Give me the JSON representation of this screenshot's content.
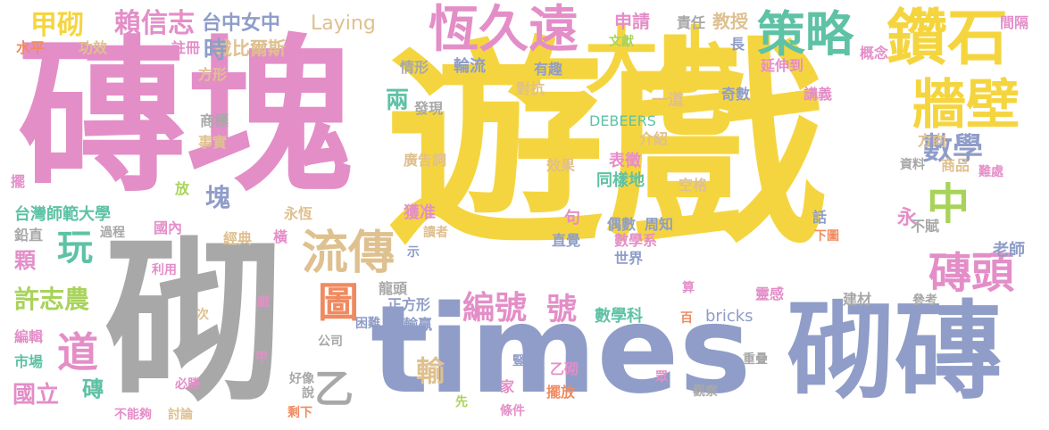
{
  "palette": {
    "yellow": "#f5d53f",
    "pink": "#e48ec8",
    "gray": "#a8a8a8",
    "blue": "#8f9dc8",
    "green": "#5ec2a5",
    "lime": "#a8d35a",
    "tan": "#dfc08f",
    "orange": "#f08a60"
  },
  "words": [
    {
      "id": "youxi",
      "text": "遊戲",
      "color": "yellow"
    },
    {
      "id": "zhuankuai",
      "text": "磚塊",
      "color": "pink"
    },
    {
      "id": "qi",
      "text": "砌",
      "color": "gray"
    },
    {
      "id": "times",
      "text": "times",
      "color": "blue"
    },
    {
      "id": "qizhuan",
      "text": "砌磚",
      "color": "blue"
    },
    {
      "id": "zuanshi",
      "text": "鑽石",
      "color": "yellow"
    },
    {
      "id": "daxiao",
      "text": "大小",
      "color": "yellow"
    },
    {
      "id": "hengjiuyuan",
      "text": "恆久遠",
      "color": "pink"
    },
    {
      "id": "celue",
      "text": "策略",
      "color": "green"
    },
    {
      "id": "qiangbi",
      "text": "牆壁",
      "color": "yellow"
    },
    {
      "id": "zhong",
      "text": "中",
      "color": "lime"
    },
    {
      "id": "shuxue",
      "text": "數學",
      "color": "blue"
    },
    {
      "id": "zhuantou",
      "text": "磚頭",
      "color": "pink"
    },
    {
      "id": "liuchuan",
      "text": "流傳",
      "color": "tan"
    },
    {
      "id": "tu",
      "text": "圖",
      "color": "orange"
    },
    {
      "id": "bianhao",
      "text": "編號",
      "color": "pink"
    },
    {
      "id": "hao",
      "text": "號",
      "color": "pink"
    },
    {
      "id": "wan",
      "text": "玩",
      "color": "green"
    },
    {
      "id": "dao",
      "text": "道",
      "color": "pink"
    },
    {
      "id": "yi",
      "text": "乙",
      "color": "gray"
    },
    {
      "id": "shu",
      "text": "輸",
      "color": "tan"
    },
    {
      "id": "jiaqi",
      "text": "甲砌",
      "color": "yellow"
    },
    {
      "id": "laixinzhi",
      "text": "賴信志",
      "color": "pink"
    },
    {
      "id": "taizhongnvzhong",
      "text": "台中女中",
      "color": "blue"
    },
    {
      "id": "laying",
      "text": "Laying",
      "color": "tan"
    },
    {
      "id": "shenqing",
      "text": "申請",
      "color": "pink"
    },
    {
      "id": "zeren",
      "text": "責任",
      "color": "gray"
    },
    {
      "id": "jiaoshou",
      "text": "教授",
      "color": "tan"
    },
    {
      "id": "shuiping",
      "text": "水平",
      "color": "orange"
    },
    {
      "id": "gongxiao",
      "text": "功效",
      "color": "tan"
    },
    {
      "id": "zhuce",
      "text": "註冊",
      "color": "pink"
    },
    {
      "id": "daibiersi",
      "text": "戴比爾斯",
      "color": "tan"
    },
    {
      "id": "wenxian",
      "text": "文獻",
      "color": "lime"
    },
    {
      "id": "zhang",
      "text": "長",
      "color": "blue"
    },
    {
      "id": "fangxing",
      "text": "方形",
      "color": "tan"
    },
    {
      "id": "qingxing",
      "text": "情形",
      "color": "gray"
    },
    {
      "id": "lunliu",
      "text": "輪流",
      "color": "blue"
    },
    {
      "id": "youqu",
      "text": "有趣",
      "color": "blue"
    },
    {
      "id": "yanshendao",
      "text": "延伸到",
      "color": "pink"
    },
    {
      "id": "gainian",
      "text": "概念",
      "color": "pink"
    },
    {
      "id": "jiange",
      "text": "間隔",
      "color": "pink"
    },
    {
      "id": "shi",
      "text": "時",
      "color": "blue"
    },
    {
      "id": "duikang",
      "text": "對抗",
      "color": "tan"
    },
    {
      "id": "qishu",
      "text": "奇數",
      "color": "blue"
    },
    {
      "id": "yidao",
      "text": "一道",
      "color": "tan"
    },
    {
      "id": "jiangyi",
      "text": "講義",
      "color": "pink"
    },
    {
      "id": "liang",
      "text": "兩",
      "color": "green"
    },
    {
      "id": "faxian",
      "text": "發現",
      "color": "gray"
    },
    {
      "id": "debeers",
      "text": "DEBEERS",
      "color": "green"
    },
    {
      "id": "shangbiao",
      "text": "商標",
      "color": "gray"
    },
    {
      "id": "shishi",
      "text": "事實",
      "color": "tan"
    },
    {
      "id": "jieshao",
      "text": "介紹",
      "color": "tan"
    },
    {
      "id": "fangxiang",
      "text": "方向",
      "color": "tan"
    },
    {
      "id": "ziliao",
      "text": "資料",
      "color": "gray"
    },
    {
      "id": "shangpin",
      "text": "商品",
      "color": "tan"
    },
    {
      "id": "nanchu",
      "text": "難處",
      "color": "pink"
    },
    {
      "id": "guanggaoci",
      "text": "廣告詞",
      "color": "tan"
    },
    {
      "id": "biaozheng",
      "text": "表徵",
      "color": "pink"
    },
    {
      "id": "xiaoguo",
      "text": "效果",
      "color": "tan"
    },
    {
      "id": "tongyangdi",
      "text": "同樣地",
      "color": "green"
    },
    {
      "id": "kongge",
      "text": "空格",
      "color": "tan"
    },
    {
      "id": "bai",
      "text": "擺",
      "color": "pink"
    },
    {
      "id": "fang",
      "text": "放",
      "color": "lime"
    },
    {
      "id": "kuai",
      "text": "塊",
      "color": "blue"
    },
    {
      "id": "yong",
      "text": "永",
      "color": "pink"
    },
    {
      "id": "taiwanshida",
      "text": "台灣師範大學",
      "color": "green"
    },
    {
      "id": "guonei",
      "text": "國內",
      "color": "pink"
    },
    {
      "id": "yongheng",
      "text": "永恆",
      "color": "tan"
    },
    {
      "id": "huozhun",
      "text": "獲准",
      "color": "pink"
    },
    {
      "id": "ju",
      "text": "句",
      "color": "pink"
    },
    {
      "id": "hua",
      "text": "話",
      "color": "blue"
    },
    {
      "id": "xiatu",
      "text": "下圖",
      "color": "orange"
    },
    {
      "id": "bufu",
      "text": "不賦",
      "color": "gray"
    },
    {
      "id": "qianzhi",
      "text": "鉛直",
      "color": "gray"
    },
    {
      "id": "guocheng",
      "text": "過程",
      "color": "gray"
    },
    {
      "id": "jingdian",
      "text": "經典",
      "color": "tan"
    },
    {
      "id": "heng",
      "text": "橫",
      "color": "pink"
    },
    {
      "id": "duzhe",
      "text": "讀者",
      "color": "tan"
    },
    {
      "id": "oushu",
      "text": "偶數",
      "color": "blue"
    },
    {
      "id": "zhouzhi",
      "text": "周知",
      "color": "blue"
    },
    {
      "id": "laoshi",
      "text": "老師",
      "color": "blue"
    },
    {
      "id": "ke",
      "text": "顆",
      "color": "pink"
    },
    {
      "id": "shi2",
      "text": "示",
      "color": "blue"
    },
    {
      "id": "zhijue",
      "text": "直覺",
      "color": "blue"
    },
    {
      "id": "shuxuexi",
      "text": "數學系",
      "color": "pink"
    },
    {
      "id": "shijie",
      "text": "世界",
      "color": "blue"
    },
    {
      "id": "liyong",
      "text": "利用",
      "color": "pink"
    },
    {
      "id": "xuzhinong",
      "text": "許志農",
      "color": "lime"
    },
    {
      "id": "longtou",
      "text": "龍頭",
      "color": "gray"
    },
    {
      "id": "suan",
      "text": "算",
      "color": "pink"
    },
    {
      "id": "lingan",
      "text": "靈感",
      "color": "pink"
    },
    {
      "id": "jiancai",
      "text": "建材",
      "color": "gray"
    },
    {
      "id": "ci",
      "text": "次",
      "color": "tan"
    },
    {
      "id": "xi",
      "text": "戲",
      "color": "pink"
    },
    {
      "id": "zhengfangxing",
      "text": "正方形",
      "color": "blue"
    },
    {
      "id": "shuxueke",
      "text": "數學科",
      "color": "green"
    },
    {
      "id": "bricks",
      "text": "bricks",
      "color": "blue"
    },
    {
      "id": "cankao",
      "text": "參考",
      "color": "gray"
    },
    {
      "id": "kunnan",
      "text": "困難",
      "color": "blue"
    },
    {
      "id": "shuying",
      "text": "輸贏",
      "color": "blue"
    },
    {
      "id": "bai2",
      "text": "百",
      "color": "orange"
    },
    {
      "id": "bianji",
      "text": "編輯",
      "color": "pink"
    },
    {
      "id": "gongsi",
      "text": "公司",
      "color": "gray"
    },
    {
      "id": "shuchang",
      "text": "市場",
      "color": "green"
    },
    {
      "id": "jia",
      "text": "甲",
      "color": "pink"
    },
    {
      "id": "shu2",
      "text": "豎",
      "color": "blue"
    },
    {
      "id": "yiqi",
      "text": "乙砌",
      "color": "pink"
    },
    {
      "id": "chongdie",
      "text": "重疊",
      "color": "gray"
    },
    {
      "id": "guoli",
      "text": "國立",
      "color": "pink"
    },
    {
      "id": "zhuan",
      "text": "磚",
      "color": "green"
    },
    {
      "id": "bisheng",
      "text": "必勝",
      "color": "pink"
    },
    {
      "id": "haoxiang",
      "text": "好像",
      "color": "gray"
    },
    {
      "id": "shuo",
      "text": "說",
      "color": "gray"
    },
    {
      "id": "jia2",
      "text": "家",
      "color": "pink"
    },
    {
      "id": "zhong2",
      "text": "眾",
      "color": "pink"
    },
    {
      "id": "baifang",
      "text": "擺放",
      "color": "orange"
    },
    {
      "id": "guancha",
      "text": "觀察",
      "color": "gray"
    },
    {
      "id": "bunenggou",
      "text": "不能夠",
      "color": "pink"
    },
    {
      "id": "taolun",
      "text": "討論",
      "color": "tan"
    },
    {
      "id": "shengxia",
      "text": "剩下",
      "color": "orange"
    },
    {
      "id": "xian",
      "text": "先",
      "color": "lime"
    },
    {
      "id": "tiaojian",
      "text": "條件",
      "color": "pink"
    }
  ]
}
